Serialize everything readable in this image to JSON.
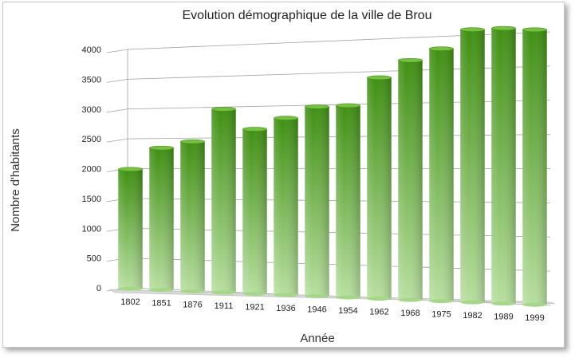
{
  "chart_data": {
    "type": "bar",
    "title": "Evolution démographique de la ville de Brou",
    "xlabel": "Année",
    "ylabel": "Nombre d'habitants",
    "categories": [
      "1802",
      "1851",
      "1876",
      "1911",
      "1921",
      "1936",
      "1946",
      "1954",
      "1962",
      "1968",
      "1975",
      "1982",
      "1989",
      "1999"
    ],
    "series": [
      {
        "values": [
          1990,
          2340,
          2440,
          2960,
          2630,
          2800,
          2970,
          2980,
          3400,
          3650,
          3810,
          4080,
          4080,
          4040
        ]
      }
    ],
    "ylim": [
      0,
      4000
    ],
    "yticks": [
      "0",
      "500",
      "1000",
      "1500",
      "2000",
      "2500",
      "3000",
      "3500",
      "4000"
    ],
    "grid": true,
    "legend": "none",
    "colors": {
      "bar_top": "#3f8f12",
      "bar_bottom": "#b8dfa0",
      "bar_cap": "#76c043",
      "grid": "#a0a0a0"
    }
  }
}
